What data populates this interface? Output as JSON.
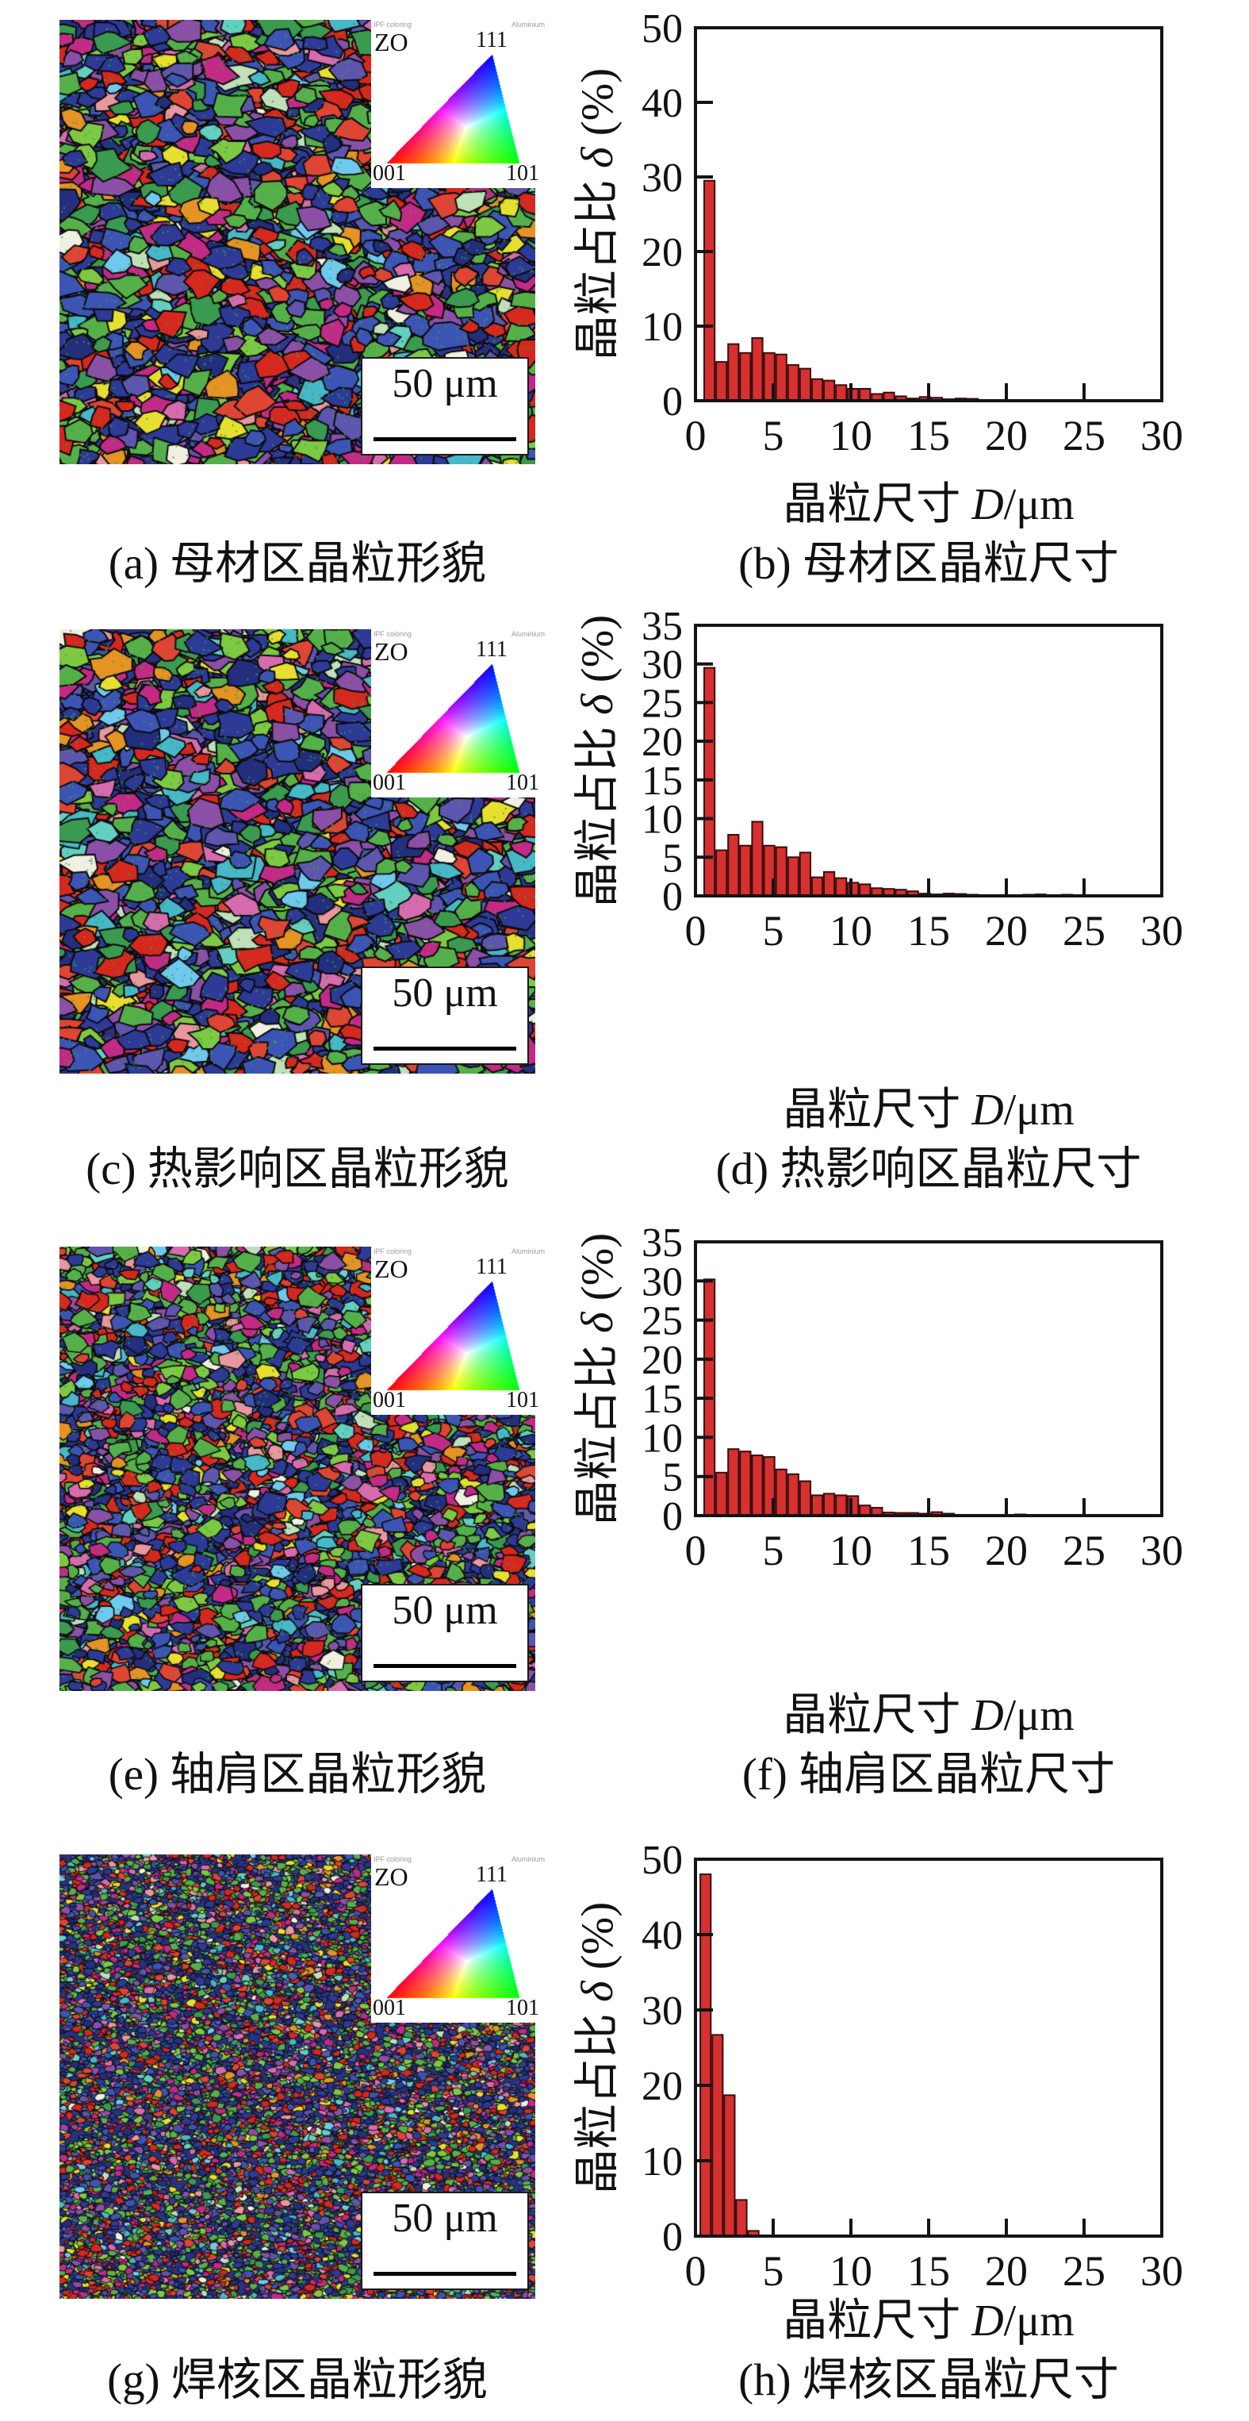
{
  "colors": {
    "bar_fill": "#d63030",
    "bar_edge": "#3a0d0d",
    "axis": "#141414",
    "background": "#ffffff",
    "ipf_001": "#ff0000",
    "ipf_101": "#00c000",
    "ipf_111": "#2040c0"
  },
  "axis_labels": {
    "x_pre": "晶粒尺寸 ",
    "x_sym": "D",
    "x_post": "/μm",
    "y_pre": "晶粒占比 ",
    "y_sym": "δ",
    "y_post": " (%)"
  },
  "legend_inset": {
    "direction_label": "ZO",
    "corner_top": "111",
    "corner_bottom_left": "001",
    "corner_bottom_right": "101",
    "small_text_left": "IPF coloring",
    "small_text_right": "Aluminium",
    "scale_label": "50 μm"
  },
  "rows": [
    {
      "map_caption": "(a) 母材区晶粒形貌",
      "chart_caption": "(b) 母材区晶粒尺寸",
      "grain_texture": "medium"
    },
    {
      "map_caption": "(c) 热影响区晶粒形貌",
      "chart_caption": "(d) 热影响区晶粒尺寸",
      "grain_texture": "medium"
    },
    {
      "map_caption": "(e) 轴肩区晶粒形貌",
      "chart_caption": "(f) 轴肩区晶粒尺寸",
      "grain_texture": "fine"
    },
    {
      "map_caption": "(g) 焊核区晶粒形貌",
      "chart_caption": "(h) 焊核区晶粒尺寸",
      "grain_texture": "ultrafine"
    }
  ],
  "chart_data": [
    {
      "id": "b",
      "type": "bar",
      "region": "母材区",
      "xlabel": "晶粒尺寸 D/μm",
      "ylabel": "晶粒占比 δ (%)",
      "xlim": [
        0,
        30
      ],
      "ylim": [
        0,
        50
      ],
      "xticks": [
        0,
        5,
        10,
        15,
        20,
        25,
        30
      ],
      "yticks": [
        0,
        10,
        20,
        30,
        40,
        50
      ],
      "x": [
        0.9,
        1.67,
        2.44,
        3.21,
        3.98,
        4.75,
        5.52,
        6.29,
        7.06,
        7.83,
        8.6,
        9.37,
        10.14,
        10.91,
        11.68,
        12.45,
        13.22,
        13.99,
        14.76,
        15.53,
        16.3,
        17.07,
        17.84
      ],
      "values": [
        29.5,
        5.2,
        7.6,
        6.4,
        8.4,
        6.4,
        6.2,
        4.8,
        4.3,
        2.9,
        2.7,
        2.1,
        1.6,
        1.6,
        0.9,
        1.1,
        0.6,
        0.3,
        0.5,
        0.4,
        0.2,
        0.3,
        0.25
      ]
    },
    {
      "id": "d",
      "type": "bar",
      "region": "热影响区",
      "xlabel": "晶粒尺寸 D/μm",
      "ylabel": "晶粒占比 δ (%)",
      "xlim": [
        0,
        30
      ],
      "ylim": [
        0,
        35
      ],
      "xticks": [
        0,
        5,
        10,
        15,
        20,
        25,
        30
      ],
      "yticks": [
        0,
        5,
        10,
        15,
        20,
        25,
        30,
        35
      ],
      "x": [
        0.9,
        1.67,
        2.44,
        3.21,
        3.98,
        4.75,
        5.52,
        6.29,
        7.06,
        7.83,
        8.6,
        9.37,
        10.14,
        10.91,
        11.68,
        12.45,
        13.22,
        13.99,
        14.76,
        15.53,
        16.3,
        17.07,
        17.84,
        21.4,
        22.2,
        23.9
      ],
      "values": [
        29.5,
        5.9,
        7.9,
        6.5,
        9.6,
        6.5,
        6.3,
        5.0,
        5.6,
        2.4,
        3.1,
        2.3,
        1.7,
        1.5,
        1.0,
        0.9,
        0.8,
        0.6,
        0.3,
        0.2,
        0.3,
        0.25,
        0.15,
        0.15,
        0.2,
        0.15
      ]
    },
    {
      "id": "f",
      "type": "bar",
      "region": "轴肩区",
      "xlabel": "晶粒尺寸 D/μm",
      "ylabel": "晶粒占比 δ (%)",
      "xlim": [
        0,
        30
      ],
      "ylim": [
        0,
        35
      ],
      "xticks": [
        0,
        5,
        10,
        15,
        20,
        25,
        30
      ],
      "yticks": [
        0,
        5,
        10,
        15,
        20,
        25,
        30,
        35
      ],
      "x": [
        0.9,
        1.67,
        2.44,
        3.21,
        3.98,
        4.75,
        5.52,
        6.29,
        7.06,
        7.83,
        8.6,
        9.37,
        10.14,
        10.91,
        11.68,
        12.45,
        13.22,
        13.99,
        14.76,
        15.53,
        16.3,
        17.07,
        17.84,
        19.4,
        20.9
      ],
      "values": [
        30.2,
        5.5,
        8.5,
        8.2,
        7.7,
        7.5,
        5.9,
        5.3,
        4.4,
        2.6,
        2.8,
        2.6,
        2.5,
        1.3,
        1.0,
        0.4,
        0.35,
        0.35,
        0.25,
        0.45,
        0.25,
        0.1,
        0.1,
        0.1,
        0.15
      ]
    },
    {
      "id": "h",
      "type": "bar",
      "region": "焊核区",
      "xlabel": "晶粒尺寸 D/μm",
      "ylabel": "晶粒占比 δ (%)",
      "xlim": [
        0,
        30
      ],
      "ylim": [
        0,
        50
      ],
      "xticks": [
        0,
        5,
        10,
        15,
        20,
        25,
        30
      ],
      "yticks": [
        0,
        10,
        20,
        30,
        40,
        50
      ],
      "x": [
        0.65,
        1.42,
        2.19,
        2.96,
        3.73
      ],
      "values": [
        48,
        26.7,
        18.7,
        4.8,
        0.7
      ]
    }
  ]
}
